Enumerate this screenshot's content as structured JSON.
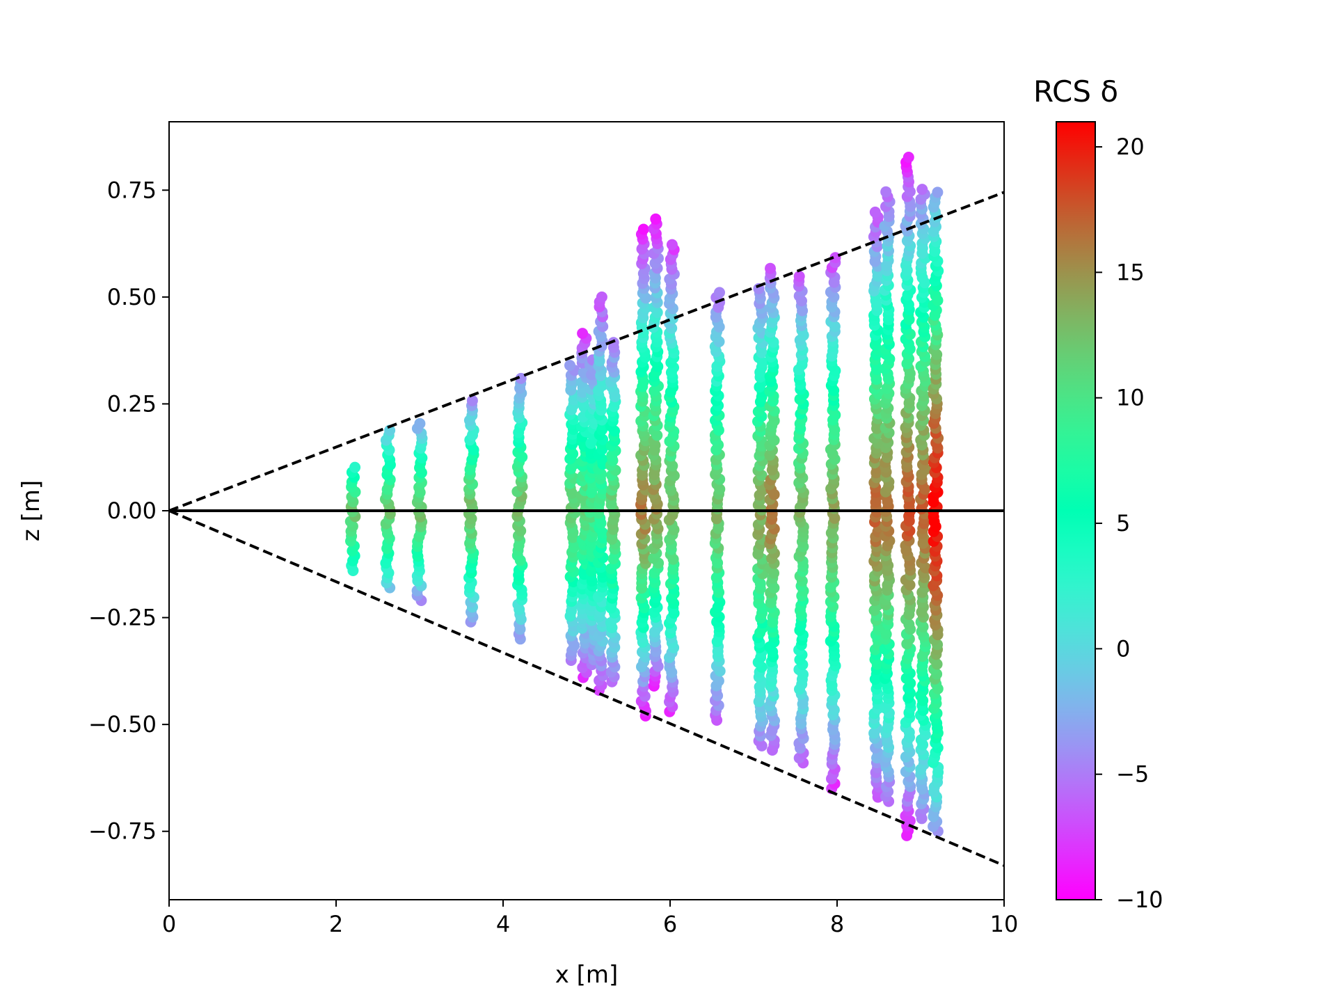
{
  "chart_data": {
    "type": "scatter",
    "xlabel": "x [m]",
    "ylabel": "z [m]",
    "colorbar_title": "RCS δ",
    "colormap": "rainbow",
    "xlim": [
      0,
      10
    ],
    "ylim": [
      -0.91,
      0.91
    ],
    "clim": [
      -10,
      21
    ],
    "grid": false,
    "x_ticks": [
      0,
      2,
      4,
      6,
      8,
      10
    ],
    "x_tick_labels": [
      "0",
      "2",
      "4",
      "6",
      "8",
      "10"
    ],
    "y_ticks": [
      -0.75,
      -0.5,
      -0.25,
      0.0,
      0.25,
      0.5,
      0.75
    ],
    "y_tick_labels": [
      "−0.75",
      "−0.50",
      "−0.25",
      "0.00",
      "0.25",
      "0.50",
      "0.75"
    ],
    "colorbar_ticks": [
      -10,
      -5,
      0,
      5,
      10,
      15,
      20
    ],
    "colorbar_tick_labels": [
      "−10",
      "−5",
      "0",
      "5",
      "10",
      "15",
      "20"
    ],
    "reference_lines": [
      {
        "name": "upper-boundary",
        "style": "dashed",
        "color": "#000000",
        "x": [
          0,
          10
        ],
        "y": [
          0,
          0.745
        ]
      },
      {
        "name": "lower-boundary",
        "style": "dashed",
        "color": "#000000",
        "x": [
          0,
          10
        ],
        "y": [
          0,
          -0.83
        ]
      },
      {
        "name": "zero-line",
        "style": "solid",
        "color": "#000000",
        "x": [
          0,
          10
        ],
        "y": [
          0,
          0
        ]
      }
    ],
    "columns": [
      {
        "x": 2.2,
        "zmin": -0.14,
        "zmax": 0.11,
        "peak": 12,
        "edge": 3
      },
      {
        "x": 2.62,
        "zmin": -0.18,
        "zmax": 0.19,
        "peak": 12,
        "edge": -1
      },
      {
        "x": 3.0,
        "zmin": -0.21,
        "zmax": 0.21,
        "peak": 13,
        "edge": -4
      },
      {
        "x": 3.62,
        "zmin": -0.26,
        "zmax": 0.26,
        "peak": 13,
        "edge": -4
      },
      {
        "x": 4.2,
        "zmin": -0.3,
        "zmax": 0.31,
        "peak": 13,
        "edge": -4
      },
      {
        "x": 4.83,
        "zmin": -0.35,
        "zmax": 0.35,
        "peak": 12,
        "edge": -5
      },
      {
        "x": 4.97,
        "zmin": -0.39,
        "zmax": 0.42,
        "peak": 11,
        "edge": -8
      },
      {
        "x": 5.07,
        "zmin": -0.36,
        "zmax": 0.36,
        "peak": 10,
        "edge": -5
      },
      {
        "x": 5.17,
        "zmin": -0.42,
        "zmax": 0.5,
        "peak": 9,
        "edge": -7
      },
      {
        "x": 5.32,
        "zmin": -0.4,
        "zmax": 0.4,
        "peak": 12,
        "edge": -6
      },
      {
        "x": 5.68,
        "zmin": -0.48,
        "zmax": 0.66,
        "peak": 16,
        "edge": -9
      },
      {
        "x": 5.83,
        "zmin": -0.41,
        "zmax": 0.69,
        "peak": 15,
        "edge": -9
      },
      {
        "x": 6.02,
        "zmin": -0.47,
        "zmax": 0.63,
        "peak": 13,
        "edge": -8
      },
      {
        "x": 6.57,
        "zmin": -0.49,
        "zmax": 0.52,
        "peak": 13,
        "edge": -6
      },
      {
        "x": 7.08,
        "zmin": -0.55,
        "zmax": 0.52,
        "peak": 14,
        "edge": -5
      },
      {
        "x": 7.22,
        "zmin": -0.56,
        "zmax": 0.57,
        "peak": 16,
        "edge": -6
      },
      {
        "x": 7.57,
        "zmin": -0.59,
        "zmax": 0.55,
        "peak": 13,
        "edge": -6
      },
      {
        "x": 7.95,
        "zmin": -0.65,
        "zmax": 0.6,
        "peak": 14,
        "edge": -8
      },
      {
        "x": 8.47,
        "zmin": -0.67,
        "zmax": 0.7,
        "peak": 17,
        "edge": -7
      },
      {
        "x": 8.6,
        "zmin": -0.68,
        "zmax": 0.75,
        "peak": 16,
        "edge": -6
      },
      {
        "x": 8.85,
        "zmin": -0.76,
        "zmax": 0.83,
        "peak": 18,
        "edge": -9
      },
      {
        "x": 9.03,
        "zmin": -0.72,
        "zmax": 0.76,
        "peak": 17,
        "edge": -5
      },
      {
        "x": 9.18,
        "zmin": -0.75,
        "zmax": 0.75,
        "peak": 21,
        "edge": -3
      }
    ]
  }
}
